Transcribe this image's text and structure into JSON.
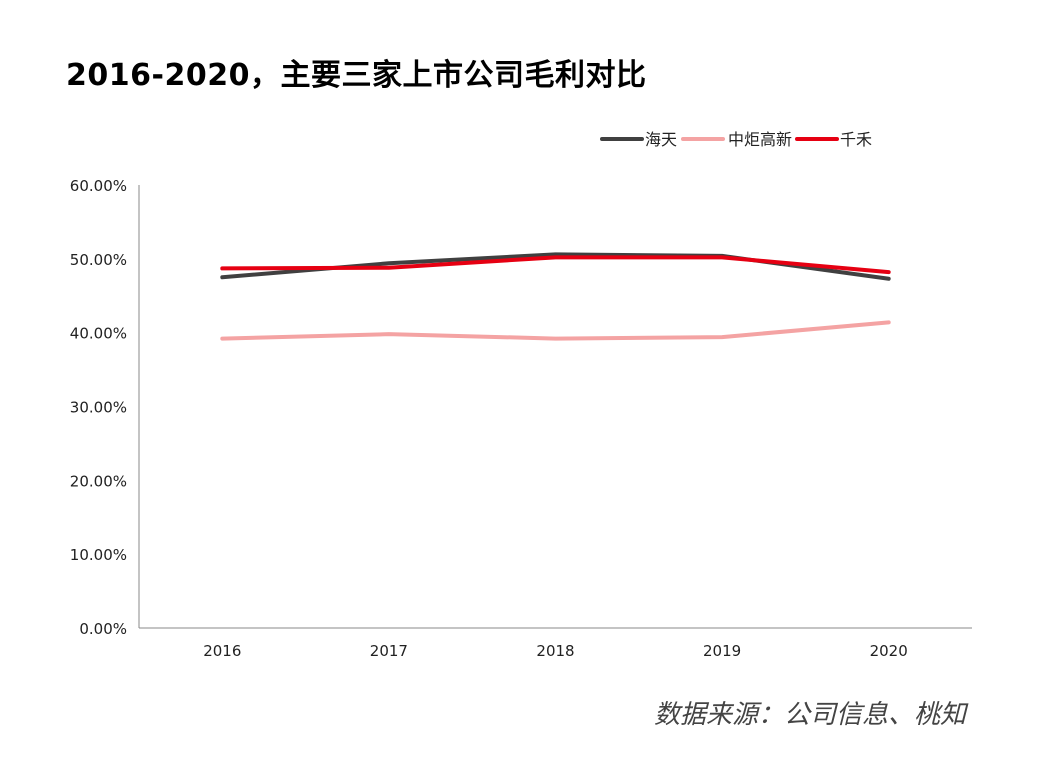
{
  "title": "2016-2020，主要三家上市公司毛利对比",
  "source": "数据来源：公司信息、桃知",
  "chart_data": {
    "type": "line",
    "title": "2016-2020，主要三家上市公司毛利对比",
    "categories": [
      "2016",
      "2017",
      "2018",
      "2019",
      "2020"
    ],
    "ylim": [
      0,
      60
    ],
    "yticks": [
      0,
      10,
      20,
      30,
      40,
      50,
      60
    ],
    "ytick_labels": [
      "0.00%",
      "10.00%",
      "20.00%",
      "30.00%",
      "40.00%",
      "50.00%",
      "60.00%"
    ],
    "xlabel": "",
    "ylabel": "",
    "grid": false,
    "legend_position": "top-right",
    "series": [
      {
        "name": "海天",
        "color": "#404040",
        "values": [
          47.5,
          49.4,
          50.6,
          50.4,
          47.3
        ]
      },
      {
        "name": "中炬高新",
        "color": "#f4a3a3",
        "values": [
          39.2,
          39.8,
          39.2,
          39.4,
          41.4
        ]
      },
      {
        "name": "千禾",
        "color": "#e60012",
        "values": [
          48.7,
          48.8,
          50.2,
          50.2,
          48.2
        ]
      }
    ]
  }
}
